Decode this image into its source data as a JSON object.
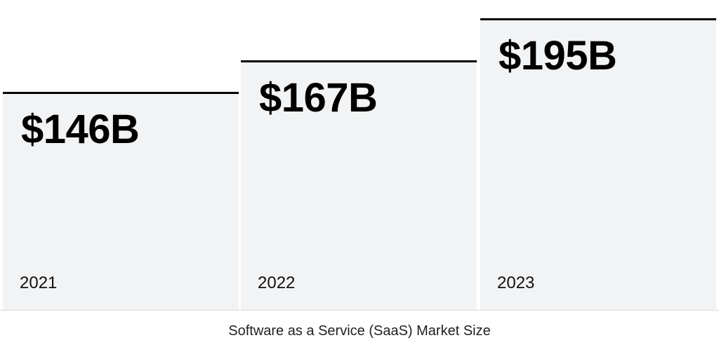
{
  "chart_data": {
    "type": "bar",
    "categories": [
      "2021",
      "2022",
      "2023"
    ],
    "values": [
      146,
      167,
      195
    ],
    "value_labels": [
      "$146B",
      "$167B",
      "$195B"
    ],
    "caption": "Software as a Service (SaaS) Market Size",
    "colors": {
      "bar_fill": "#f2f3f5",
      "bar_top": "#000000",
      "baseline": "#d9dbde"
    }
  }
}
